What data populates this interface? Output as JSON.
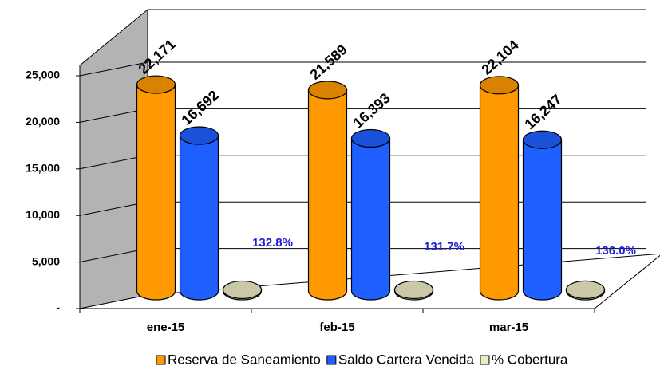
{
  "chart_data": {
    "type": "bar",
    "categories": [
      "ene-15",
      "feb-15",
      "mar-15"
    ],
    "series": [
      {
        "name": "Reserva de Saneamiento",
        "color": "#ff9900",
        "values": [
          22171,
          21589,
          22104
        ],
        "value_labels": [
          "22,171",
          "21,589",
          "22,104"
        ]
      },
      {
        "name": "Saldo Cartera Vencida",
        "color": "#1f5fff",
        "values": [
          16692,
          16393,
          16247
        ],
        "value_labels": [
          "16,692",
          "16,393",
          "16,247"
        ]
      },
      {
        "name": "% Cobertura",
        "color": "#ecebc4",
        "values": [
          132.8,
          131.7,
          136.0
        ],
        "value_labels": [
          "132.8%",
          "131.7%",
          "136.0%"
        ]
      }
    ],
    "ylim": [
      0,
      25000
    ],
    "yticks": [
      {
        "value": 0,
        "label": "-"
      },
      {
        "value": 5000,
        "label": "5,000"
      },
      {
        "value": 10000,
        "label": "10,000"
      },
      {
        "value": 15000,
        "label": "15,000"
      },
      {
        "value": 20000,
        "label": "20,000"
      },
      {
        "value": 25000,
        "label": "25,000"
      }
    ],
    "grid": true,
    "legend": "bottom"
  }
}
